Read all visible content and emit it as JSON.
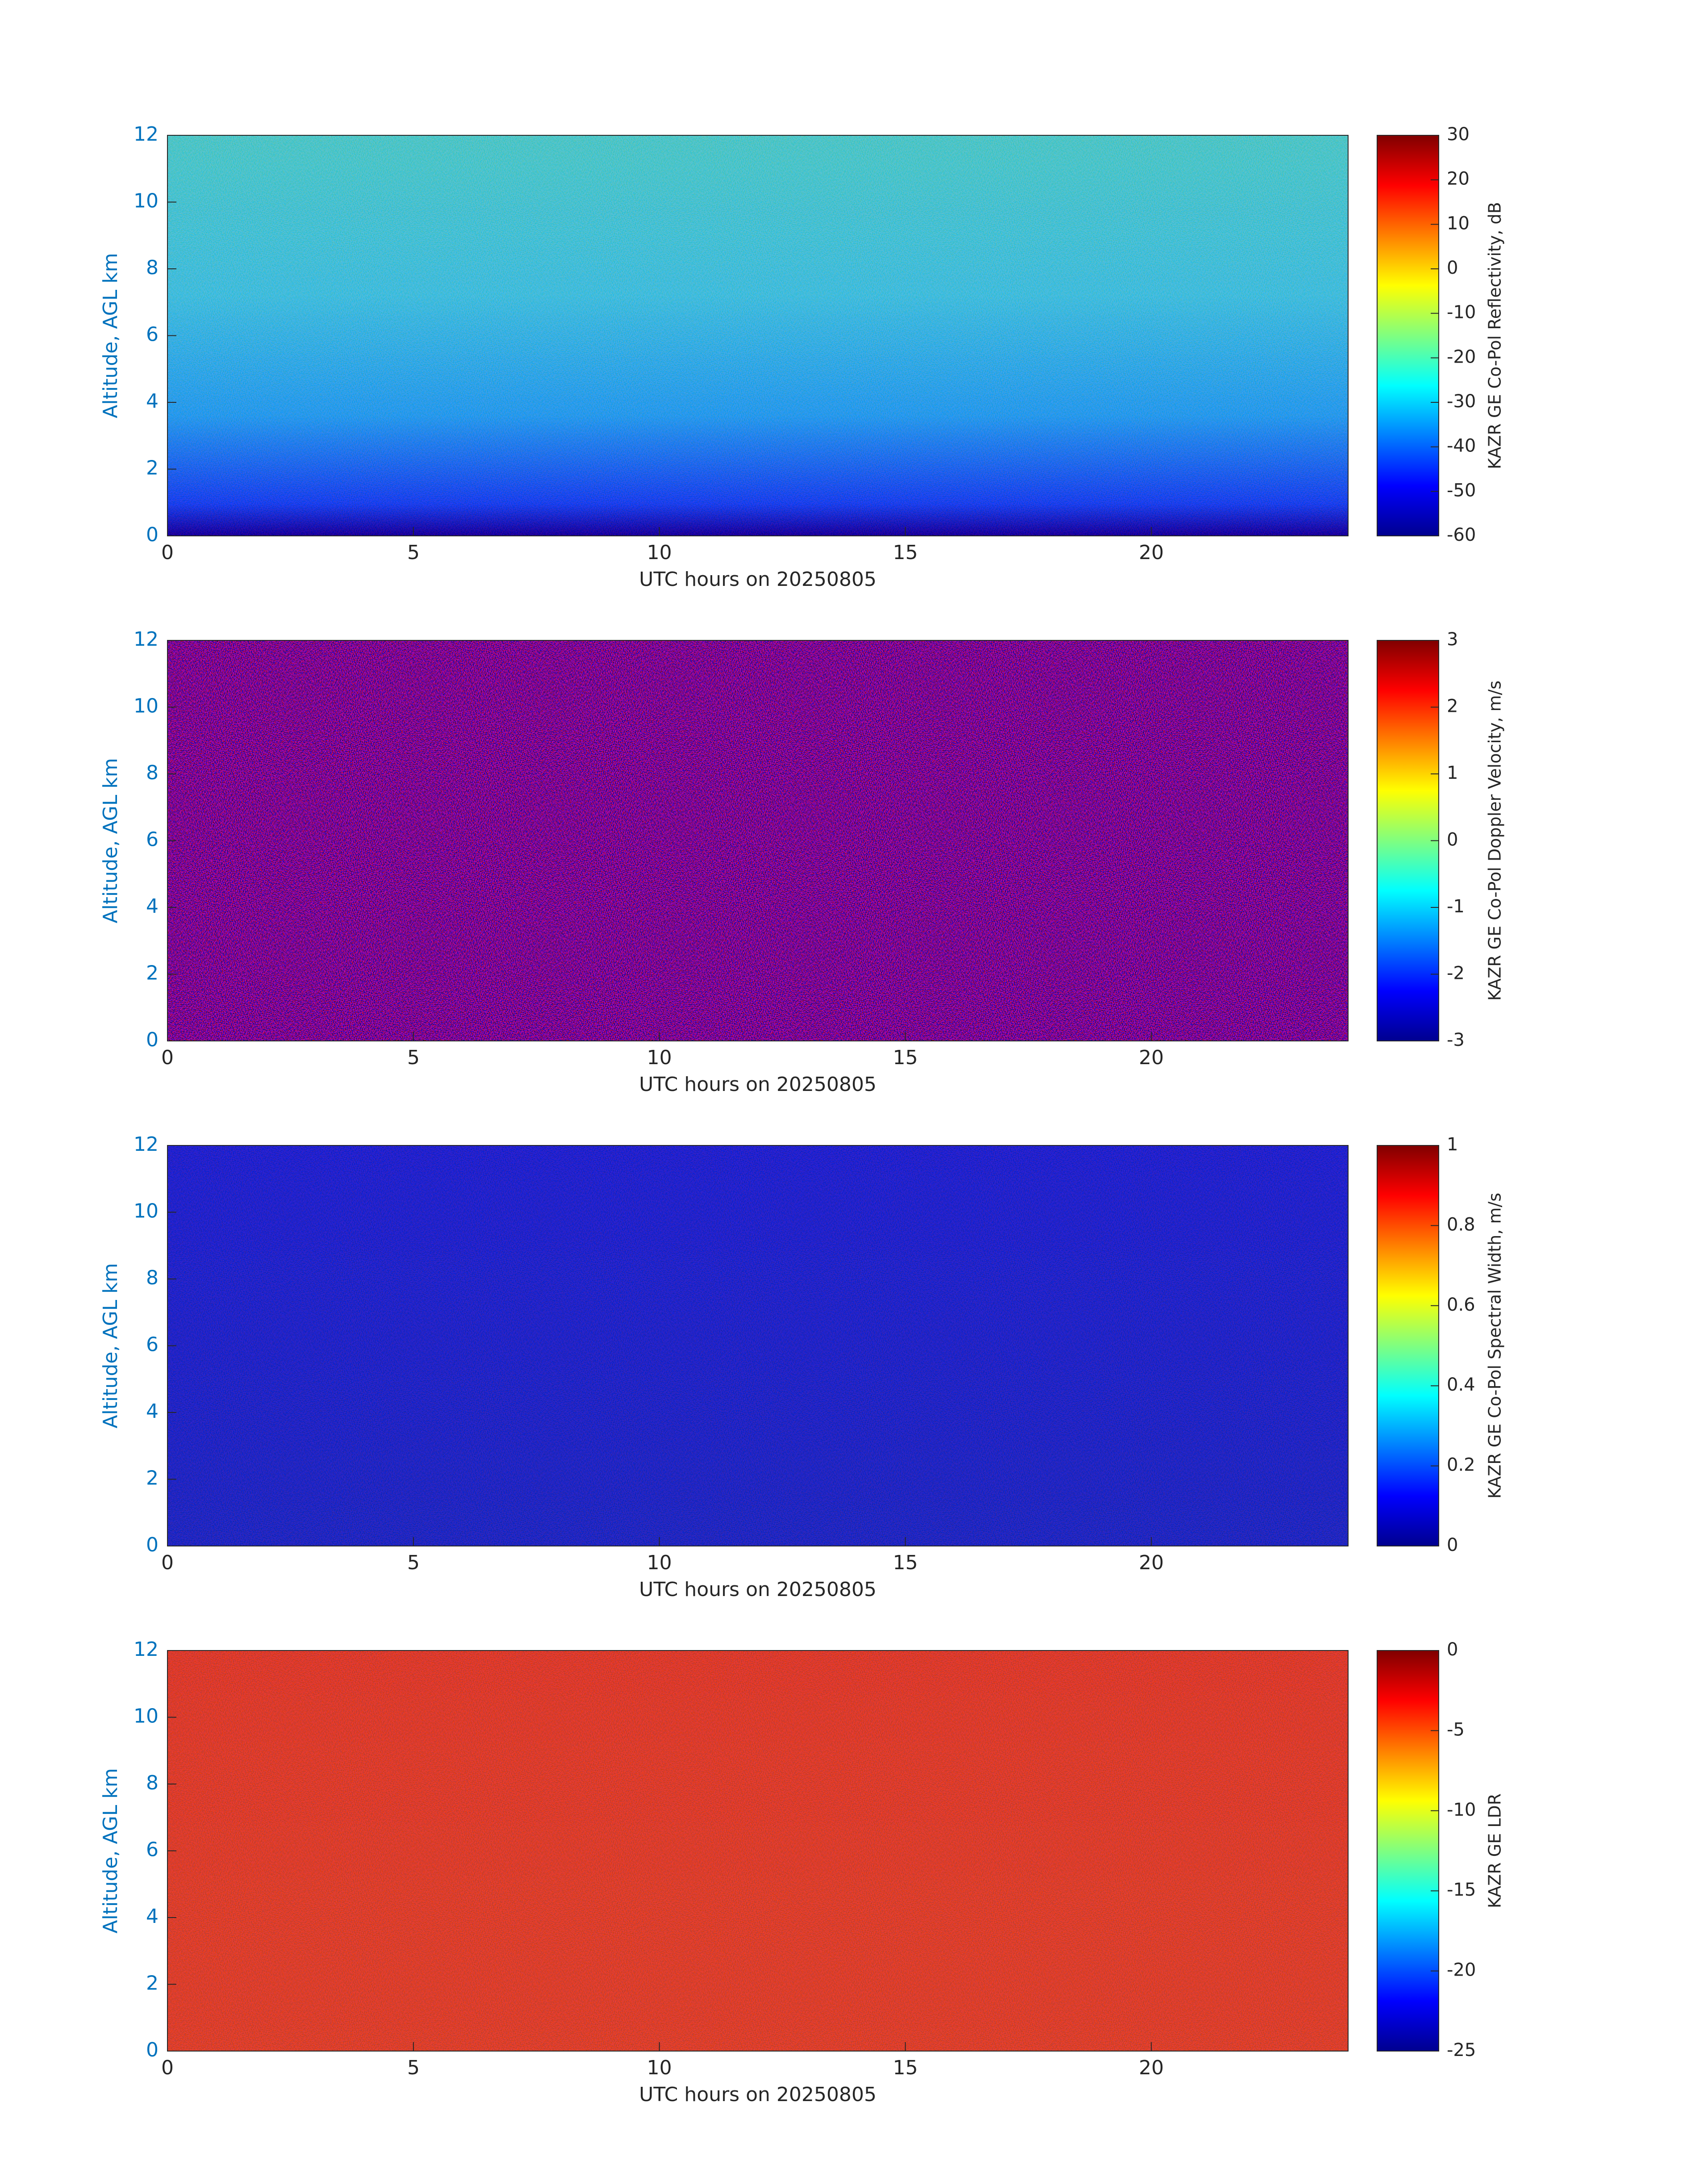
{
  "chart_data": [
    {
      "type": "heatmap",
      "colormap": "jet",
      "xlabel": "UTC hours on 20250805",
      "ylabel": "Altitude, AGL km",
      "xlim": [
        0,
        24
      ],
      "xticks": [
        0,
        5,
        10,
        15,
        20
      ],
      "ylim": [
        0,
        12
      ],
      "yticks": [
        0,
        2,
        4,
        6,
        8,
        10,
        12
      ],
      "colorbar_label": "KAZR GE Co-Pol Reflectivity, dB",
      "clim": [
        -60,
        30
      ],
      "cticks": [
        -60,
        -50,
        -40,
        -30,
        -20,
        -10,
        0,
        10,
        20,
        30
      ]
    },
    {
      "type": "heatmap",
      "colormap": "jet",
      "xlabel": "UTC hours on 20250805",
      "ylabel": "Altitude, AGL km",
      "xlim": [
        0,
        24
      ],
      "xticks": [
        0,
        5,
        10,
        15,
        20
      ],
      "ylim": [
        0,
        12
      ],
      "yticks": [
        0,
        2,
        4,
        6,
        8,
        10,
        12
      ],
      "colorbar_label": "KAZR GE Co-Pol Doppler Velocity, m/s",
      "clim": [
        -3,
        3
      ],
      "cticks": [
        -3,
        -2,
        -1,
        0,
        1,
        2,
        3
      ]
    },
    {
      "type": "heatmap",
      "colormap": "jet",
      "xlabel": "UTC hours on 20250805",
      "ylabel": "Altitude, AGL km",
      "xlim": [
        0,
        24
      ],
      "xticks": [
        0,
        5,
        10,
        15,
        20
      ],
      "ylim": [
        0,
        12
      ],
      "yticks": [
        0,
        2,
        4,
        6,
        8,
        10,
        12
      ],
      "colorbar_label": "KAZR GE Co-Pol Spectral Width, m/s",
      "clim": [
        0,
        1
      ],
      "cticks": [
        0,
        0.2,
        0.4,
        0.6,
        0.8,
        1
      ]
    },
    {
      "type": "heatmap",
      "colormap": "jet",
      "xlabel": "UTC hours on 20250805",
      "ylabel": "Altitude, AGL km",
      "xlim": [
        0,
        24
      ],
      "xticks": [
        0,
        5,
        10,
        15,
        20
      ],
      "ylim": [
        0,
        12
      ],
      "yticks": [
        0,
        2,
        4,
        6,
        8,
        10,
        12
      ],
      "colorbar_label": "KAZR GE LDR",
      "clim": [
        -25,
        0
      ],
      "cticks": [
        -25,
        -20,
        -15,
        -10,
        -5,
        0
      ]
    }
  ]
}
